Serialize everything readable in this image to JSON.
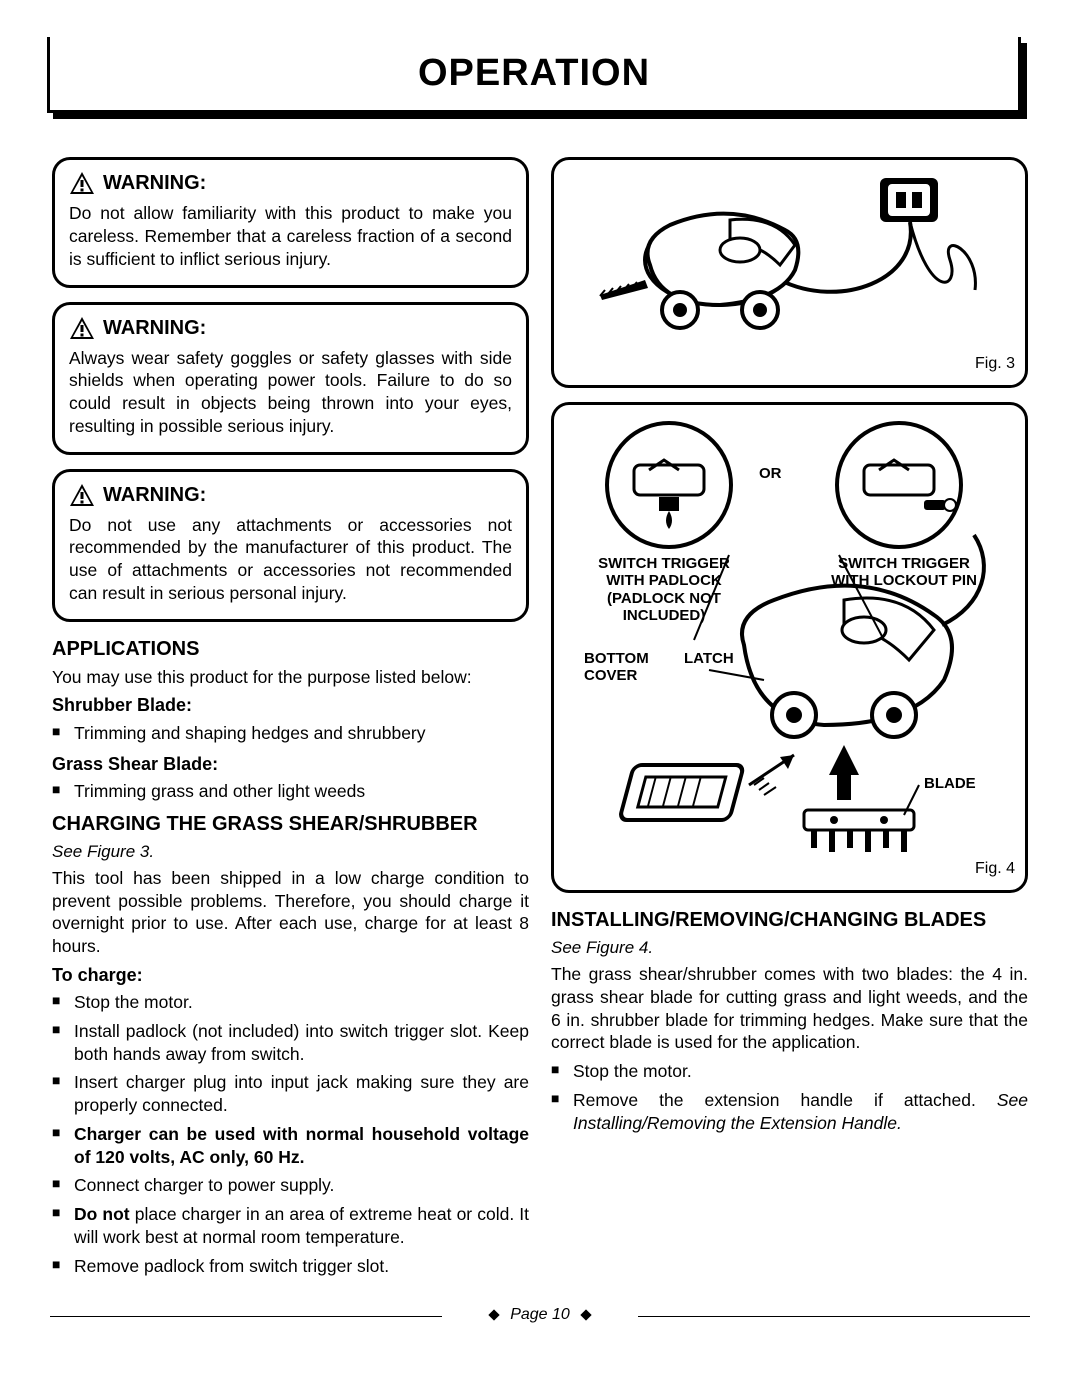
{
  "title": "OPERATION",
  "warnings": [
    {
      "label": "WARNING:",
      "text": "Do not allow familiarity with this product to make you careless. Remember that a careless fraction of a second is sufficient to inflict serious injury."
    },
    {
      "label": "WARNING:",
      "text": "Always wear safety goggles or safety glasses with side shields when operating power tools. Failure to do so could result in objects being thrown into your eyes, resulting in possible serious injury."
    },
    {
      "label": "WARNING:",
      "text": "Do not use any attachments or accessories not recommended by the manufacturer of this product. The use of attachments or accessories not recommended can result in serious personal injury."
    }
  ],
  "applications": {
    "heading": "APPLICATIONS",
    "intro": "You may use this product for the purpose listed below:",
    "shrubber_label": "Shrubber Blade:",
    "shrubber_item": "Trimming and shaping hedges and shrubbery",
    "grass_label": "Grass Shear Blade:",
    "grass_item": "Trimming grass and other light weeds"
  },
  "charging": {
    "heading": "CHARGING THE GRASS SHEAR/SHRUBBER",
    "ref": "See Figure 3.",
    "body": "This tool has been shipped in a low charge condition to prevent possible problems. Therefore, you should charge it overnight prior to use. After each use, charge for at least 8 hours.",
    "to_charge_label": "To charge:",
    "items": [
      "Stop the motor.",
      "Install padlock (not included) into switch trigger slot. Keep both hands away from switch.",
      "Insert charger plug into input jack making sure they are properly connected.",
      "<b>Charger can be used with normal household voltage of 120 volts, AC only, 60 Hz.</b>",
      "Connect charger to power supply.",
      "<b>Do not</b> place charger in an area of extreme heat or cold. It will work best at normal room temperature.",
      "Remove padlock from switch trigger slot."
    ]
  },
  "fig3": {
    "caption": "Fig. 3"
  },
  "fig4": {
    "caption": "Fig. 4",
    "or": "OR",
    "label_left": "SWITCH TRIGGER WITH PADLOCK (PADLOCK NOT INCLUDED)",
    "label_right": "SWITCH TRIGGER WITH LOCKOUT PIN",
    "bottom_cover": "BOTTOM COVER",
    "latch": "LATCH",
    "blade": "BLADE"
  },
  "installing": {
    "heading": "INSTALLING/REMOVING/CHANGING BLADES",
    "ref": "See Figure 4.",
    "body": "The grass shear/shrubber comes with two blades: the 4 in. grass shear blade for cutting grass and light weeds, and the 6 in. shrubber blade for trimming hedges. Make sure that the correct blade is used for the application.",
    "items": [
      "Stop the motor.",
      "Remove the extension handle if attached. <i>See Installing/Removing the Extension Handle.</i>"
    ]
  },
  "footer": "Page 10"
}
